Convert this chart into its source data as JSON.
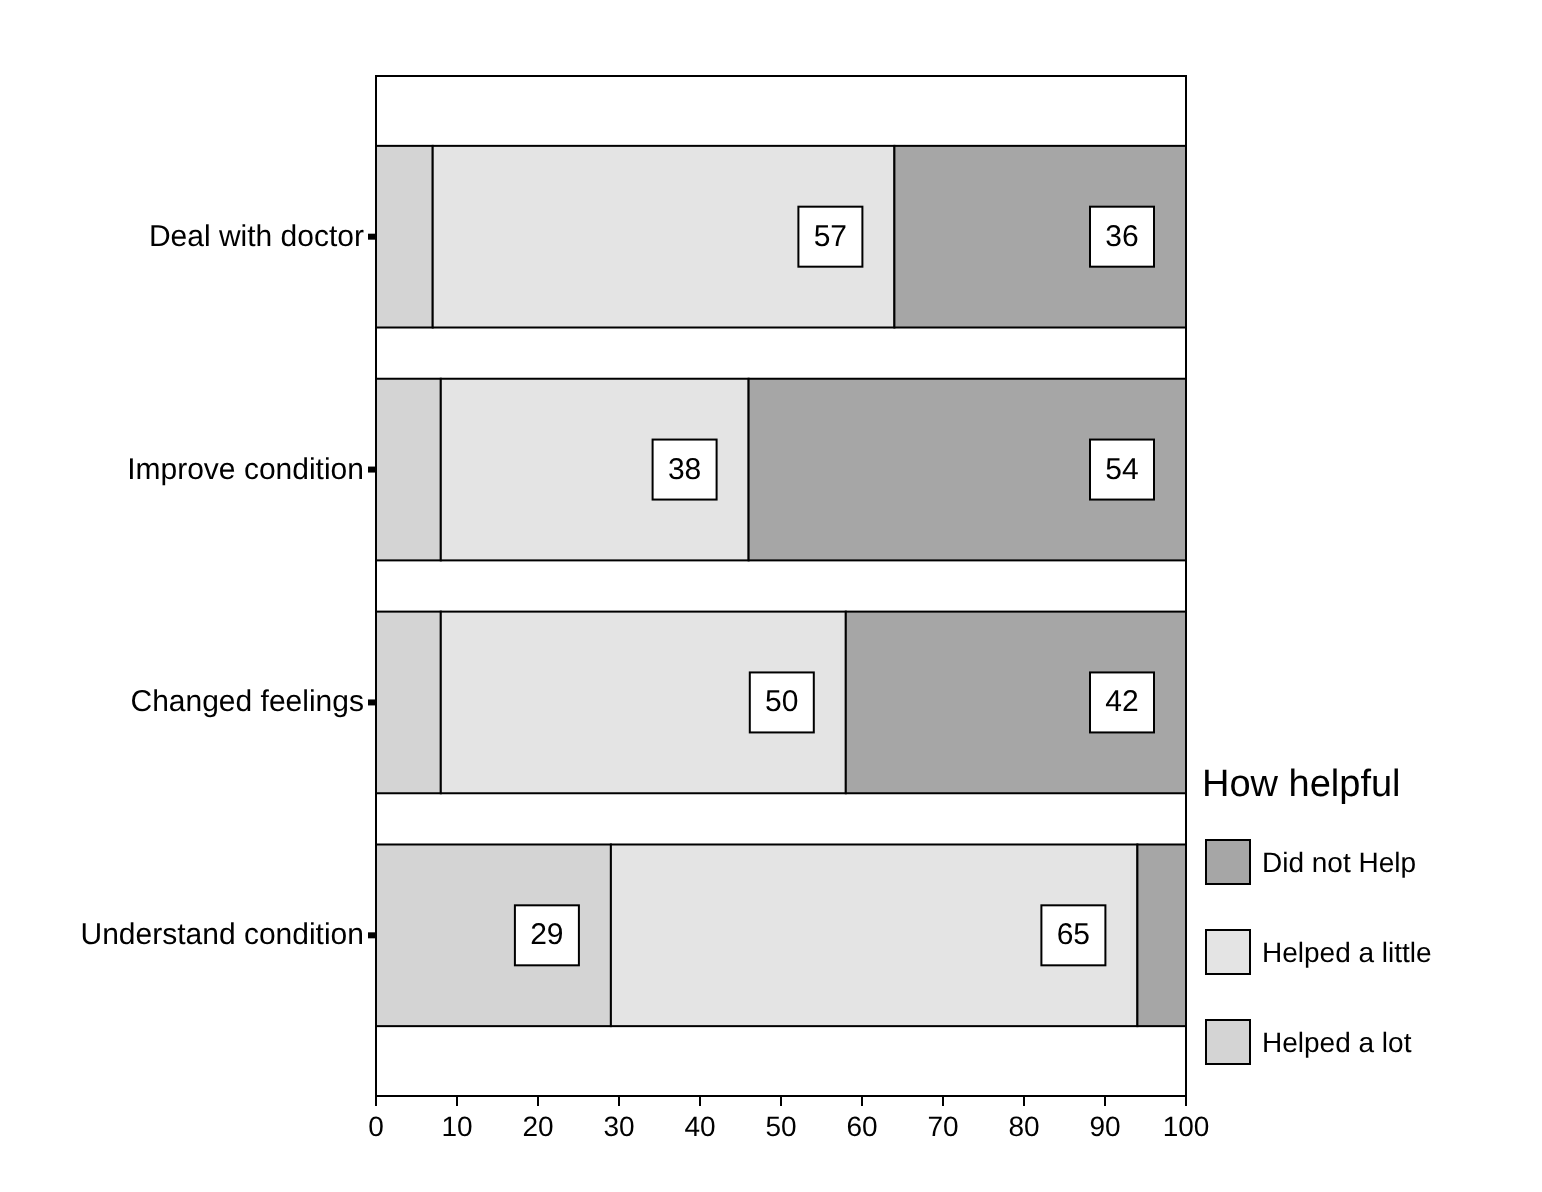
{
  "chart_data": {
    "type": "bar",
    "orientation": "horizontal",
    "stacked": true,
    "categories": [
      "Deal with doctor",
      "Improve condition",
      "Changed feelings",
      "Understand condition"
    ],
    "series": [
      {
        "name": "Helped a lot",
        "color": "#d4d4d4",
        "values": [
          7,
          8,
          8,
          29
        ],
        "value_labels": [
          null,
          null,
          null,
          "29"
        ]
      },
      {
        "name": "Helped a little",
        "color": "#e4e4e4",
        "values": [
          57,
          38,
          50,
          65
        ],
        "value_labels": [
          "57",
          "38",
          "50",
          "65"
        ]
      },
      {
        "name": "Did not Help",
        "color": "#a6a6a6",
        "values": [
          36,
          54,
          42,
          6
        ],
        "value_labels": [
          "36",
          "54",
          "42",
          null
        ]
      }
    ],
    "xlim": [
      0,
      100
    ],
    "xticks": [
      0,
      10,
      20,
      30,
      40,
      50,
      60,
      70,
      80,
      90,
      100
    ],
    "legend": "right",
    "legend_title": "How helpful"
  }
}
